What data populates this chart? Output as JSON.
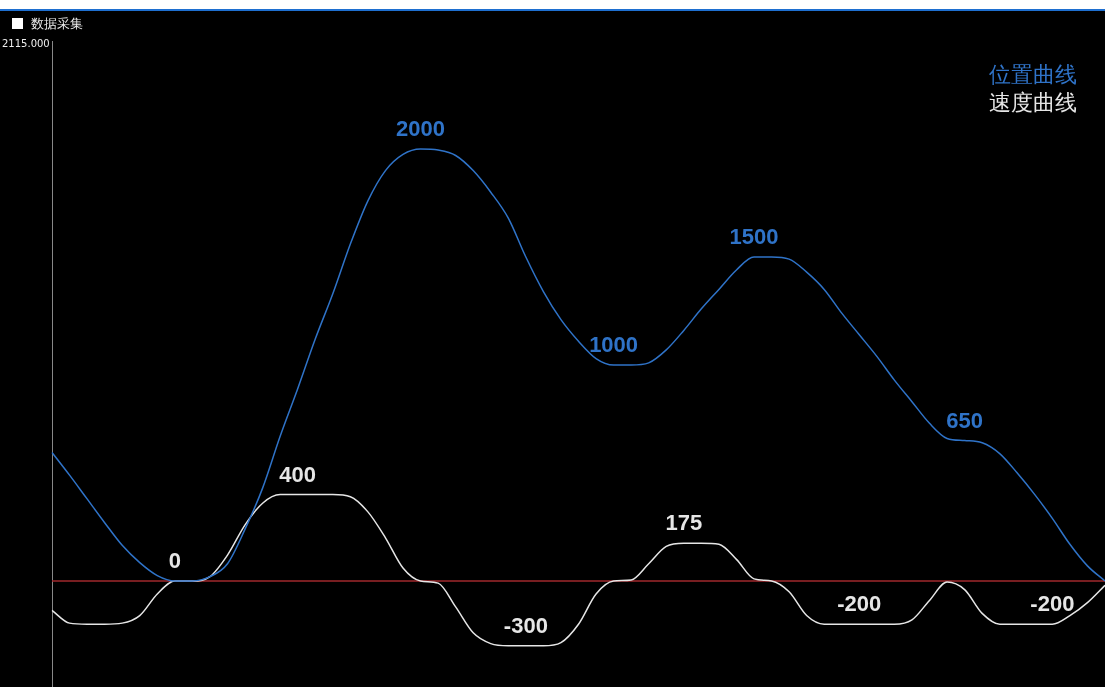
{
  "chart_data": {
    "type": "line",
    "title": "数据采集",
    "categories": [
      null,
      null,
      null,
      null,
      null,
      null,
      null,
      null,
      null,
      null,
      null,
      null,
      null,
      null,
      null,
      null,
      null,
      null,
      null,
      null,
      null,
      null,
      null,
      null,
      null,
      null,
      null,
      null,
      null,
      null,
      null,
      null,
      null,
      null,
      null,
      null,
      null,
      null,
      null,
      null,
      null,
      null,
      null,
      null,
      null,
      null,
      null,
      null,
      null,
      null,
      null,
      null,
      null,
      null,
      null,
      null,
      null,
      null,
      null,
      null,
      null
    ],
    "series": [
      {
        "name": "位置曲线",
        "color": "#2f73c8",
        "values": [
          595,
          490,
          380,
          270,
          165,
          85,
          25,
          0,
          0,
          20,
          80,
          240,
          430,
          670,
          890,
          1120,
          1330,
          1560,
          1760,
          1900,
          1975,
          2000,
          1995,
          1970,
          1900,
          1800,
          1680,
          1500,
          1340,
          1210,
          1110,
          1030,
          1000,
          1000,
          1010,
          1070,
          1160,
          1260,
          1350,
          1440,
          1500,
          1500,
          1490,
          1430,
          1350,
          1240,
          1140,
          1040,
          930,
          830,
          730,
          660,
          650,
          640,
          590,
          500,
          400,
          290,
          170,
          70,
          0
        ],
        "value_labels": [
          null,
          null,
          null,
          null,
          null,
          null,
          null,
          null,
          null,
          null,
          null,
          null,
          null,
          null,
          null,
          null,
          null,
          null,
          null,
          null,
          null,
          "2000",
          null,
          null,
          null,
          null,
          null,
          null,
          null,
          null,
          null,
          null,
          "1000",
          null,
          null,
          null,
          null,
          null,
          null,
          null,
          "1500",
          null,
          null,
          null,
          null,
          null,
          null,
          null,
          null,
          null,
          null,
          null,
          "650",
          null,
          null,
          null,
          null,
          null,
          null,
          null,
          null
        ]
      },
      {
        "name": "速度曲线",
        "color": "#e6e6e6",
        "values": [
          -136,
          -195,
          -200,
          -200,
          -195,
          -160,
          -60,
          0,
          0,
          20,
          120,
          260,
          360,
          400,
          400,
          400,
          400,
          390,
          320,
          200,
          60,
          0,
          -10,
          -120,
          -240,
          -290,
          -300,
          -300,
          -300,
          -285,
          -200,
          -60,
          0,
          5,
          80,
          160,
          175,
          175,
          170,
          100,
          10,
          0,
          -50,
          -160,
          -200,
          -200,
          -200,
          -200,
          -200,
          -180,
          -90,
          -5,
          -40,
          -150,
          -200,
          -200,
          -200,
          -200,
          -160,
          -100,
          -20
        ],
        "value_labels": [
          null,
          null,
          null,
          null,
          null,
          null,
          null,
          "0",
          null,
          null,
          null,
          null,
          null,
          null,
          "400",
          null,
          null,
          null,
          null,
          null,
          null,
          null,
          null,
          null,
          null,
          null,
          null,
          "-300",
          null,
          null,
          null,
          null,
          null,
          null,
          null,
          null,
          "175",
          null,
          null,
          null,
          null,
          null,
          null,
          null,
          null,
          null,
          "-200",
          null,
          null,
          null,
          null,
          null,
          null,
          null,
          null,
          null,
          null,
          "-200",
          null,
          null,
          null
        ]
      }
    ],
    "annotations": [
      "2115.000"
    ],
    "tick_labels": false,
    "legend": "top right",
    "marker": "none",
    "ref_lines": [
      {
        "axis": "y",
        "value": 0,
        "color": "#a0282d"
      }
    ]
  }
}
